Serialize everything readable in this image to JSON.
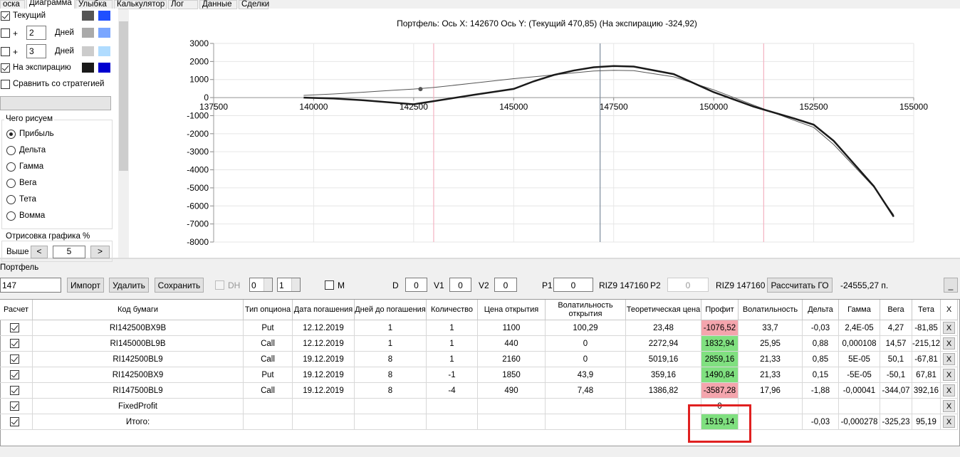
{
  "tabs": [
    "оска",
    "Диаграмма",
    "Улыбка",
    "Калькулятор",
    "Лог",
    "Данные",
    "Сделки"
  ],
  "left_panel": {
    "curves": [
      {
        "label": "Текущий",
        "checked": true,
        "colors": [
          "#555555",
          "#2050ff"
        ]
      },
      {
        "prefix": "+",
        "days": "2",
        "label": "Дней",
        "checked": false,
        "colors": [
          "#aaaaaa",
          "#7aa6ff"
        ]
      },
      {
        "prefix": "+",
        "days": "3",
        "label": "Дней",
        "checked": false,
        "colors": [
          "#cccccc",
          "#b0dcff"
        ]
      },
      {
        "label": "На экспирацию",
        "checked": true,
        "colors": [
          "#1a1a1a",
          "#0000d0"
        ]
      }
    ],
    "compare": {
      "label": "Сравнить со стратегией",
      "checked": false
    },
    "draw_group": {
      "title": "Чего рисуем",
      "options": [
        "Прибыль",
        "Дельта",
        "Гамма",
        "Вега",
        "Тета",
        "Вомма"
      ],
      "selected": 0
    },
    "render_group": {
      "title": "Отрисовка графика %",
      "label": "Выше",
      "prev": "<",
      "value": "5",
      "next": ">"
    }
  },
  "chart": {
    "type": "line",
    "title": "Портфель: Ось X: 142670 Ось Y:  (Текущий 470,85)  (На экспирацию -324,92)",
    "x": [
      139750,
      140500,
      141250,
      142000,
      142500,
      143000,
      144000,
      145000,
      145500,
      146000,
      146500,
      147000,
      147500,
      148000,
      149000,
      150000,
      151000,
      152000,
      152500,
      153000,
      154000,
      154500
    ],
    "series": [
      {
        "color": "#555555",
        "width": 1,
        "values": [
          120,
          200,
          300,
          410,
          470,
          560,
          800,
          1050,
          1150,
          1260,
          1370,
          1470,
          1510,
          1490,
          1150,
          430,
          -420,
          -1250,
          -1650,
          -2600,
          -4950,
          -6500
        ]
      },
      {
        "color": "#1a1a1a",
        "width": 2.5,
        "values": [
          0,
          -50,
          -150,
          -280,
          -370,
          -200,
          150,
          480,
          900,
          1250,
          1500,
          1680,
          1750,
          1720,
          1300,
          300,
          -500,
          -1150,
          -1500,
          -2400,
          -4900,
          -6600
        ]
      }
    ],
    "xlim": [
      137500,
      155000
    ],
    "ylim": [
      -8000,
      3000
    ],
    "xticks": [
      137500,
      140000,
      142500,
      145000,
      147500,
      150000,
      152500,
      155000
    ],
    "yticks": [
      3000,
      2000,
      1000,
      0,
      -1000,
      -2000,
      -3000,
      -4000,
      -5000,
      -6000,
      -7000,
      -8000
    ],
    "grid": true,
    "vlines": [
      {
        "value": 143000,
        "color": "#f4b3c2"
      },
      {
        "value": 151250,
        "color": "#f4b3c2"
      },
      {
        "value": 147160,
        "color": "#7d8c9c"
      }
    ],
    "marker": {
      "x": 142670,
      "y": 470.85,
      "color": "#555555"
    }
  },
  "portfolio": {
    "title": "Портфель",
    "toolbar": [
      {
        "kind": "select",
        "text": "147"
      },
      {
        "kind": "button",
        "text": "Импорт"
      },
      {
        "kind": "button",
        "text": "Удалить"
      },
      {
        "kind": "button",
        "text": "Сохранить"
      },
      {
        "kind": "checkbox",
        "text": "DH",
        "checked": false,
        "disabled": true
      },
      {
        "kind": "spin",
        "text": "0"
      },
      {
        "kind": "spin",
        "text": "1"
      },
      {
        "kind": "checkbox",
        "text": "M",
        "checked": false
      },
      {
        "kind": "label",
        "text": "D"
      },
      {
        "kind": "field",
        "text": "0"
      },
      {
        "kind": "label",
        "text": "V1"
      },
      {
        "kind": "field",
        "text": "0"
      },
      {
        "kind": "label",
        "text": "V2"
      },
      {
        "kind": "field",
        "text": "0"
      },
      {
        "kind": "label",
        "text": "P1"
      },
      {
        "kind": "field",
        "text": "0"
      },
      {
        "kind": "label",
        "text": "RIZ9 147160"
      },
      {
        "kind": "label",
        "text": "P2"
      },
      {
        "kind": "field",
        "text": "0",
        "disabled": true
      },
      {
        "kind": "label",
        "text": "RIZ9 147160"
      },
      {
        "kind": "button",
        "text": "Рассчитать ГО"
      },
      {
        "kind": "label",
        "text": "-24555,27 п."
      },
      {
        "kind": "button",
        "text": "_"
      }
    ]
  },
  "table": {
    "columns": [
      "Расчет",
      "Код бумаги",
      "Тип опциона",
      "Дата погашения",
      "Дней до погашения",
      "Количество",
      "Цена открытия",
      "Волатильность открытия",
      "Теоретическая цена",
      "Профит",
      "Волатильность",
      "Дельта",
      "Гамма",
      "Вега",
      "Тета",
      "X"
    ],
    "row_button": "X",
    "rows": [
      {
        "checked": true,
        "cells": [
          "RI142500BX9B",
          "Put",
          "12.12.2019",
          "1",
          "1",
          "1100",
          "100,29",
          "23,48",
          "-1076,52",
          "33,7",
          "-0,03",
          "2,4E-05",
          "4,27",
          "-81,85"
        ]
      },
      {
        "checked": true,
        "cells": [
          "RI145000BL9B",
          "Call",
          "12.12.2019",
          "1",
          "1",
          "440",
          "0",
          "2272,94",
          "1832,94",
          "25,95",
          "0,88",
          "0,000108",
          "14,57",
          "-215,12"
        ]
      },
      {
        "checked": true,
        "cells": [
          "RI142500BL9",
          "Call",
          "19.12.2019",
          "8",
          "1",
          "2160",
          "0",
          "5019,16",
          "2859,16",
          "21,33",
          "0,85",
          "5E-05",
          "50,1",
          "-67,81"
        ]
      },
      {
        "checked": true,
        "cells": [
          "RI142500BX9",
          "Put",
          "19.12.2019",
          "8",
          "-1",
          "1850",
          "43,9",
          "359,16",
          "1490,84",
          "21,33",
          "0,15",
          "-5E-05",
          "-50,1",
          "67,81"
        ]
      },
      {
        "checked": true,
        "cells": [
          "RI147500BL9",
          "Call",
          "19.12.2019",
          "8",
          "-4",
          "490",
          "7,48",
          "1386,82",
          "-3587,28",
          "17,96",
          "-1,88",
          "-0,00041",
          "-344,07",
          "392,16"
        ]
      },
      {
        "checked": true,
        "cells": [
          "FixedProfit",
          null,
          null,
          null,
          null,
          null,
          null,
          null,
          "0",
          null,
          null,
          null,
          null,
          null
        ]
      },
      {
        "checked": true,
        "cells": [
          "Итого:",
          null,
          null,
          null,
          null,
          null,
          null,
          null,
          "1519,14",
          null,
          "-0,03",
          "-0,000278",
          "-325,23",
          "95,19"
        ]
      }
    ]
  }
}
